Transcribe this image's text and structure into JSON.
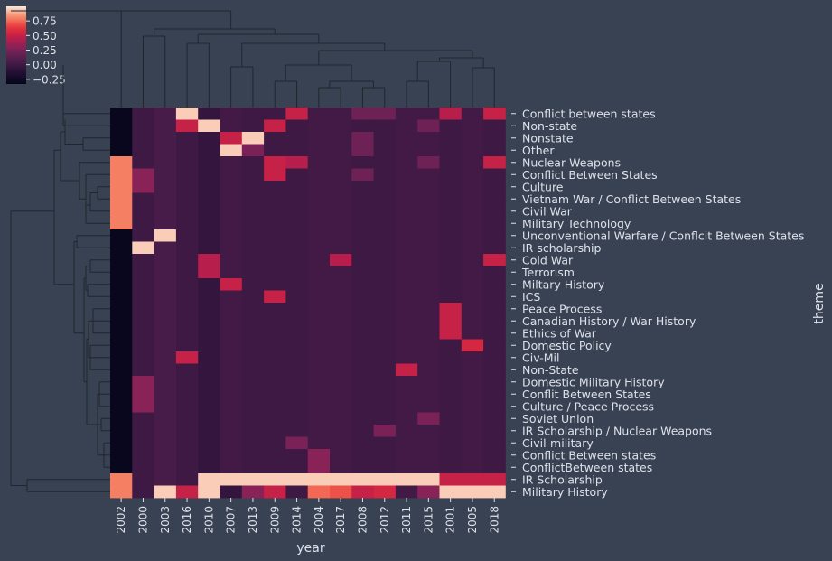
{
  "chart_data": {
    "type": "heatmap",
    "title": "",
    "xlabel": "year",
    "ylabel": "theme",
    "x_categories": [
      "2002",
      "2000",
      "2003",
      "2016",
      "2010",
      "2007",
      "2013",
      "2009",
      "2014",
      "2004",
      "2017",
      "2008",
      "2012",
      "2011",
      "2015",
      "2001",
      "2005",
      "2018"
    ],
    "y_categories": [
      "Conflict between states",
      "Non-state",
      "Nonstate",
      "Other",
      "Nuclear Weapons",
      "Conflict Between States",
      "Culture",
      "Vietnam War / Conflict Between States",
      "Civil War",
      "Military Technology",
      "Unconventional Warfare / Conflcit Between States",
      "IR scholarship",
      "Cold War",
      "Terrorism",
      "Miltary History",
      "ICS",
      "Peace Process",
      "Canadian History / War History",
      "Ethics of War",
      "Domestic Policy",
      "Civ-Mil",
      "Non-State",
      "Domestic Military History",
      "Conflit Between States",
      "Culture / Peace Process",
      "Soviet Union",
      "IR Scholarship / Nuclear Weapons",
      "Civil-military",
      "Conflict Between states",
      "ConflictBetween states",
      "IR Scholarship",
      "Military History"
    ],
    "colorbar": {
      "ticks": [
        0.75,
        0.5,
        0.25,
        0.0,
        -0.25
      ],
      "tick_labels": [
        "0.75",
        "0.50",
        "0.25",
        "0.00",
        "−0.25"
      ],
      "range": [
        -0.33,
        1.0
      ]
    },
    "values": [
      [
        -0.3,
        0.0,
        0.05,
        0.95,
        -0.05,
        0.02,
        0.0,
        0.0,
        0.5,
        0.02,
        0.02,
        0.2,
        0.2,
        0.02,
        0.02,
        0.45,
        0.02,
        0.5
      ],
      [
        -0.3,
        0.0,
        0.05,
        0.5,
        0.95,
        0.02,
        0.0,
        0.5,
        0.0,
        0.02,
        0.02,
        0.0,
        0.0,
        0.02,
        0.2,
        0.0,
        0.02,
        0.0
      ],
      [
        -0.3,
        0.0,
        0.05,
        0.0,
        -0.05,
        0.5,
        0.95,
        0.0,
        0.0,
        0.02,
        0.02,
        0.2,
        0.0,
        0.02,
        0.02,
        0.0,
        0.02,
        0.0
      ],
      [
        -0.3,
        0.0,
        0.05,
        0.0,
        -0.05,
        0.95,
        0.25,
        0.0,
        0.0,
        0.02,
        0.02,
        0.2,
        0.0,
        0.02,
        0.02,
        0.0,
        0.02,
        0.0
      ],
      [
        0.8,
        0.0,
        0.05,
        0.0,
        -0.05,
        0.02,
        0.0,
        0.5,
        0.45,
        0.02,
        0.02,
        0.0,
        0.0,
        0.02,
        0.2,
        0.0,
        0.02,
        0.5
      ],
      [
        0.8,
        0.3,
        0.05,
        0.0,
        -0.05,
        0.02,
        0.0,
        0.5,
        0.0,
        0.02,
        0.02,
        0.2,
        0.0,
        0.02,
        0.02,
        0.0,
        0.02,
        0.0
      ],
      [
        0.8,
        0.3,
        0.05,
        0.0,
        -0.05,
        0.02,
        0.0,
        0.0,
        0.0,
        0.02,
        0.02,
        0.0,
        0.0,
        0.02,
        0.02,
        0.0,
        0.02,
        0.0
      ],
      [
        0.8,
        0.0,
        0.05,
        0.0,
        -0.05,
        0.02,
        0.0,
        0.0,
        0.0,
        0.02,
        0.02,
        0.0,
        0.0,
        0.02,
        0.02,
        0.0,
        0.02,
        0.0
      ],
      [
        0.8,
        0.0,
        0.05,
        0.0,
        -0.05,
        0.02,
        0.0,
        0.0,
        0.0,
        0.02,
        0.02,
        0.0,
        0.0,
        0.02,
        0.02,
        0.0,
        0.02,
        0.0
      ],
      [
        0.8,
        0.0,
        0.05,
        0.0,
        -0.05,
        0.02,
        0.0,
        0.0,
        0.0,
        0.02,
        0.02,
        0.0,
        0.0,
        0.02,
        0.02,
        0.0,
        0.02,
        0.0
      ],
      [
        -0.3,
        0.0,
        0.95,
        0.0,
        -0.05,
        0.02,
        0.0,
        0.0,
        0.0,
        0.02,
        0.02,
        0.0,
        0.0,
        0.02,
        0.02,
        0.0,
        0.02,
        0.0
      ],
      [
        -0.3,
        0.95,
        0.05,
        0.0,
        -0.05,
        0.02,
        0.0,
        0.0,
        0.0,
        0.02,
        0.02,
        0.0,
        0.0,
        0.02,
        0.02,
        0.0,
        0.02,
        0.0
      ],
      [
        -0.3,
        0.0,
        0.05,
        0.0,
        0.45,
        0.02,
        0.0,
        0.0,
        0.0,
        0.02,
        0.45,
        0.0,
        0.0,
        0.02,
        0.02,
        0.0,
        0.02,
        0.5
      ],
      [
        -0.3,
        0.0,
        0.05,
        0.0,
        0.45,
        0.02,
        0.0,
        0.0,
        0.0,
        0.02,
        0.02,
        0.0,
        0.0,
        0.02,
        0.02,
        0.0,
        0.02,
        0.0
      ],
      [
        -0.3,
        0.0,
        0.05,
        0.0,
        -0.05,
        0.5,
        0.0,
        0.0,
        0.0,
        0.02,
        0.02,
        0.0,
        0.0,
        0.02,
        0.02,
        0.0,
        0.02,
        0.0
      ],
      [
        -0.3,
        0.0,
        0.05,
        0.0,
        -0.05,
        0.02,
        0.0,
        0.5,
        0.0,
        0.02,
        0.02,
        0.0,
        0.0,
        0.02,
        0.02,
        0.0,
        0.02,
        0.0
      ],
      [
        -0.3,
        0.0,
        0.05,
        0.0,
        -0.05,
        0.02,
        0.0,
        0.0,
        0.0,
        0.02,
        0.02,
        0.0,
        0.0,
        0.02,
        0.02,
        0.5,
        0.02,
        0.0
      ],
      [
        -0.3,
        0.0,
        0.05,
        0.0,
        -0.05,
        0.02,
        0.0,
        0.0,
        0.0,
        0.02,
        0.02,
        0.0,
        0.0,
        0.02,
        0.02,
        0.5,
        0.02,
        0.0
      ],
      [
        -0.3,
        0.0,
        0.05,
        0.0,
        -0.05,
        0.02,
        0.0,
        0.0,
        0.0,
        0.02,
        0.02,
        0.0,
        0.0,
        0.02,
        0.02,
        0.5,
        0.02,
        0.0
      ],
      [
        -0.3,
        0.0,
        0.05,
        0.0,
        -0.05,
        0.02,
        0.0,
        0.0,
        0.0,
        0.02,
        0.02,
        0.0,
        0.0,
        0.02,
        0.02,
        0.0,
        0.55,
        0.0
      ],
      [
        -0.3,
        0.0,
        0.05,
        0.5,
        -0.05,
        0.02,
        0.0,
        0.0,
        0.0,
        0.02,
        0.02,
        0.0,
        0.0,
        0.02,
        0.02,
        0.0,
        0.02,
        0.0
      ],
      [
        -0.3,
        0.0,
        0.05,
        0.0,
        -0.05,
        0.02,
        0.0,
        0.0,
        0.0,
        0.02,
        0.02,
        0.0,
        0.0,
        0.5,
        0.02,
        0.0,
        0.02,
        0.0
      ],
      [
        -0.3,
        0.3,
        0.05,
        0.0,
        -0.05,
        0.02,
        0.0,
        0.0,
        0.0,
        0.02,
        0.02,
        0.0,
        0.0,
        0.02,
        0.02,
        0.0,
        0.02,
        0.0
      ],
      [
        -0.3,
        0.3,
        0.05,
        0.0,
        -0.05,
        0.02,
        0.0,
        0.0,
        0.0,
        0.02,
        0.02,
        0.0,
        0.0,
        0.02,
        0.02,
        0.0,
        0.02,
        0.0
      ],
      [
        -0.3,
        0.3,
        0.05,
        0.0,
        -0.05,
        0.02,
        0.0,
        0.0,
        0.0,
        0.02,
        0.02,
        0.0,
        0.0,
        0.02,
        0.02,
        0.0,
        0.02,
        0.0
      ],
      [
        -0.3,
        0.0,
        0.05,
        0.0,
        -0.05,
        0.02,
        0.0,
        0.0,
        0.0,
        0.02,
        0.02,
        0.0,
        0.0,
        0.02,
        0.25,
        0.0,
        0.02,
        0.0
      ],
      [
        -0.3,
        0.0,
        0.05,
        0.0,
        -0.05,
        0.02,
        0.0,
        0.0,
        0.0,
        0.02,
        0.02,
        0.0,
        0.25,
        0.02,
        0.02,
        0.0,
        0.02,
        0.0
      ],
      [
        -0.3,
        0.0,
        0.05,
        0.0,
        -0.05,
        0.02,
        0.0,
        0.0,
        0.25,
        0.02,
        0.02,
        0.0,
        0.0,
        0.02,
        0.02,
        0.0,
        0.02,
        0.0
      ],
      [
        -0.3,
        0.0,
        0.05,
        0.0,
        -0.05,
        0.02,
        0.0,
        0.0,
        0.0,
        0.3,
        0.02,
        0.0,
        0.0,
        0.02,
        0.02,
        0.0,
        0.02,
        0.0
      ],
      [
        -0.3,
        0.0,
        0.05,
        0.0,
        -0.05,
        0.02,
        0.0,
        0.0,
        0.0,
        0.3,
        0.02,
        0.0,
        0.0,
        0.02,
        0.02,
        0.0,
        0.02,
        0.0
      ],
      [
        0.8,
        0.0,
        0.05,
        0.0,
        0.95,
        0.95,
        0.95,
        0.95,
        0.95,
        0.95,
        0.95,
        0.95,
        0.95,
        0.95,
        0.95,
        0.5,
        0.5,
        0.5
      ],
      [
        0.8,
        0.0,
        0.95,
        0.5,
        0.95,
        -0.05,
        0.3,
        0.5,
        0.0,
        0.75,
        0.7,
        0.5,
        0.55,
        0.02,
        0.3,
        0.95,
        0.95,
        0.95
      ]
    ]
  }
}
